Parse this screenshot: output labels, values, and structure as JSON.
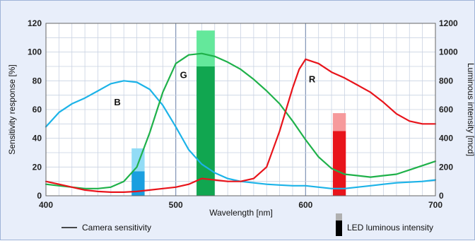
{
  "chart_data": {
    "type": "line",
    "title": "",
    "xlabel": "Wavelength [nm]",
    "ylabel": "Sensitivity response [%]",
    "y2label": "Luminous intensity [mcd]",
    "xlim": [
      400,
      700
    ],
    "ylim": [
      0,
      120
    ],
    "y2lim": [
      0,
      1200
    ],
    "x_ticks": [
      400,
      500,
      600,
      700
    ],
    "y_ticks": [
      0,
      20,
      40,
      60,
      80,
      100,
      120
    ],
    "y2_ticks": [
      0,
      200,
      400,
      600,
      800,
      1000,
      1200
    ],
    "grid": true,
    "series": [
      {
        "name": "B",
        "color": "#1cb3e8",
        "x": [
          400,
          410,
          420,
          430,
          440,
          450,
          460,
          470,
          480,
          490,
          500,
          510,
          520,
          530,
          540,
          550,
          560,
          570,
          580,
          590,
          600,
          610,
          620,
          630,
          640,
          650,
          660,
          670,
          680,
          690,
          700
        ],
        "y": [
          48,
          58,
          64,
          68,
          73,
          78,
          80,
          79,
          74,
          63,
          48,
          32,
          22,
          16,
          12,
          10,
          9,
          8,
          7.5,
          7,
          7,
          6,
          5,
          5,
          6,
          7,
          8,
          9,
          9.5,
          10,
          11
        ]
      },
      {
        "name": "G",
        "color": "#1fb14a",
        "x": [
          400,
          410,
          420,
          430,
          440,
          450,
          460,
          470,
          480,
          490,
          500,
          510,
          520,
          530,
          540,
          550,
          560,
          570,
          580,
          590,
          600,
          610,
          620,
          630,
          640,
          650,
          660,
          670,
          680,
          690,
          700
        ],
        "y": [
          8,
          7,
          6,
          5,
          5,
          6,
          10,
          20,
          44,
          72,
          92,
          98,
          99,
          97,
          93,
          88,
          81,
          73,
          64,
          52,
          39,
          27,
          19,
          15,
          14,
          13,
          14,
          15,
          18,
          21,
          24
        ]
      },
      {
        "name": "R",
        "color": "#e8141b",
        "x": [
          400,
          410,
          420,
          430,
          440,
          450,
          460,
          470,
          480,
          490,
          500,
          510,
          520,
          530,
          540,
          550,
          560,
          570,
          580,
          590,
          595,
          600,
          610,
          620,
          630,
          640,
          650,
          660,
          670,
          680,
          690,
          700
        ],
        "y": [
          10,
          8,
          6,
          4,
          3,
          2.5,
          2.5,
          3,
          4,
          5,
          6,
          8,
          12,
          11,
          10,
          10,
          12,
          20,
          45,
          75,
          88,
          95,
          92,
          86,
          82,
          77,
          72,
          65,
          57,
          52,
          50,
          50
        ]
      }
    ],
    "led_bars": [
      {
        "name": "blue-led",
        "x_from": 466,
        "x_to": 476,
        "value_dark": 170,
        "value_light": 330,
        "color_dark": "#1a9fe0",
        "color_light": "#92dcf6"
      },
      {
        "name": "green-led",
        "x_from": 516,
        "x_to": 530,
        "value_dark": 900,
        "value_light": 1150,
        "color_dark": "#11a650",
        "color_light": "#64e89b"
      },
      {
        "name": "red-led",
        "x_from": 621,
        "x_to": 631,
        "value_dark": 450,
        "value_light": 575,
        "color_dark": "#e8141b",
        "color_light": "#f69a9c"
      }
    ],
    "curve_labels": [
      {
        "text": "B",
        "x": 455,
        "y": 63
      },
      {
        "text": "G",
        "x": 506,
        "y": 82
      },
      {
        "text": "R",
        "x": 605,
        "y": 79
      }
    ],
    "legend": {
      "camera": "Camera sensitivity",
      "led": "LED luminous intensity"
    }
  }
}
